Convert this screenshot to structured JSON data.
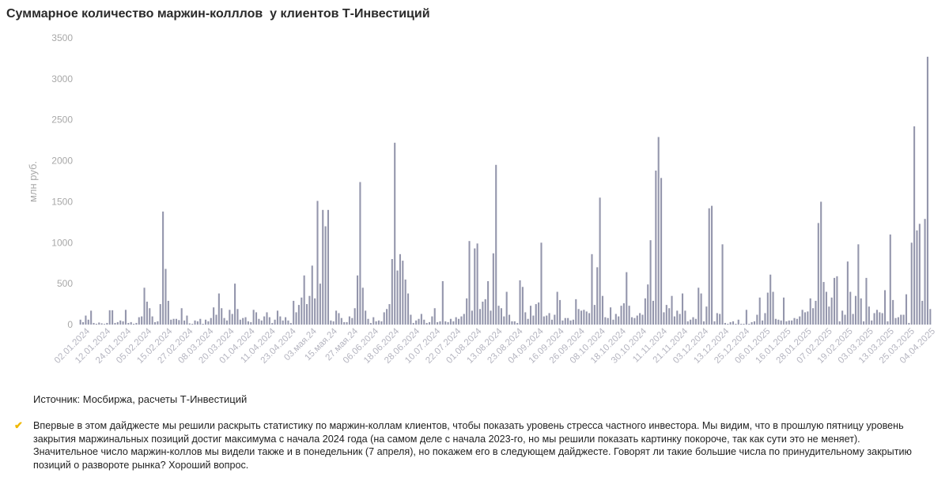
{
  "chart_data": {
    "type": "bar",
    "title": "Суммарное количество маржин-колллов  у клиентов Т-Инвестиций",
    "ylabel": "млн руб.",
    "xlabel": "",
    "ylim": [
      0,
      3500
    ],
    "yticks": [
      0,
      500,
      1000,
      1500,
      2000,
      2500,
      3000,
      3500
    ],
    "grid": false,
    "bar_color": "#9496ac",
    "x_tick_labels": [
      "02.01.2024",
      "12.01.2024",
      "24.01.2024",
      "05.02.2024",
      "15.02.2024",
      "27.02.2024",
      "08.03.2024",
      "20.03.2024",
      "01.04.2024",
      "11.04.2024",
      "23.04.2024",
      "03.мая.24",
      "15.мая.24",
      "27.мая.24",
      "06.06.2024",
      "18.06.2024",
      "28.06.2024",
      "10.07.2024",
      "22.07.2024",
      "01.08.2024",
      "13.08.2024",
      "23.08.2024",
      "04.09.2024",
      "16.09.2024",
      "26.09.2024",
      "08.10.2024",
      "18.10.2024",
      "30.10.2024",
      "11.11.2024",
      "21.11.2024",
      "03.12.2024",
      "13.12.2024",
      "25.12.2024",
      "06.01.2025",
      "16.01.2025",
      "28.01.2025",
      "07.02.2025",
      "19.02.2025",
      "03.03.2025",
      "13.03.2025",
      "25.03.2025",
      "04.04.2025"
    ],
    "values": [
      60,
      30,
      110,
      60,
      170,
      20,
      10,
      25,
      15,
      8,
      20,
      175,
      175,
      20,
      30,
      50,
      40,
      180,
      20,
      30,
      10,
      20,
      90,
      100,
      450,
      280,
      200,
      100,
      30,
      40,
      250,
      1380,
      680,
      290,
      60,
      70,
      70,
      55,
      200,
      50,
      110,
      15,
      10,
      50,
      40,
      70,
      10,
      60,
      40,
      80,
      210,
      120,
      380,
      200,
      80,
      50,
      180,
      130,
      500,
      190,
      60,
      80,
      90,
      40,
      30,
      180,
      150,
      70,
      50,
      100,
      150,
      90,
      20,
      60,
      170,
      100,
      50,
      90,
      50,
      20,
      290,
      150,
      240,
      330,
      600,
      250,
      350,
      720,
      320,
      1510,
      500,
      1400,
      1200,
      1400,
      50,
      40,
      170,
      140,
      80,
      30,
      30,
      100,
      80,
      200,
      600,
      1740,
      450,
      170,
      70,
      20,
      90,
      40,
      50,
      40,
      150,
      190,
      250,
      800,
      2220,
      660,
      860,
      780,
      550,
      380,
      120,
      20,
      50,
      70,
      130,
      60,
      20,
      30,
      100,
      200,
      30,
      40,
      530,
      40,
      30,
      70,
      40,
      90,
      70,
      100,
      130,
      320,
      1020,
      170,
      930,
      990,
      190,
      280,
      310,
      530,
      170,
      870,
      1950,
      230,
      200,
      100,
      400,
      120,
      40,
      40,
      20,
      540,
      460,
      150,
      70,
      230,
      110,
      250,
      270,
      1000,
      100,
      110,
      140,
      60,
      120,
      400,
      300,
      50,
      80,
      80,
      50,
      60,
      310,
      190,
      170,
      180,
      160,
      140,
      860,
      240,
      700,
      1550,
      350,
      90,
      80,
      210,
      60,
      130,
      100,
      230,
      260,
      640,
      230,
      90,
      80,
      110,
      140,
      120,
      320,
      490,
      1030,
      290,
      1880,
      2290,
      1790,
      150,
      240,
      200,
      350,
      100,
      170,
      130,
      380,
      170,
      40,
      60,
      90,
      70,
      450,
      380,
      40,
      220,
      1420,
      1450,
      40,
      140,
      130,
      980,
      20,
      10,
      30,
      40,
      10,
      60,
      10,
      10,
      180,
      10,
      30,
      40,
      120,
      330,
      50,
      140,
      390,
      610,
      400,
      70,
      60,
      50,
      330,
      40,
      50,
      50,
      80,
      70,
      100,
      180,
      150,
      160,
      320,
      200,
      290,
      1240,
      1500,
      520,
      400,
      220,
      330,
      570,
      590,
      40,
      170,
      120,
      770,
      400,
      130,
      350,
      980,
      320,
      40,
      570,
      220,
      50,
      140,
      180,
      150,
      140,
      420,
      40,
      1100,
      300,
      80,
      90,
      120,
      120,
      370,
      20,
      1000,
      2420,
      1150,
      1230,
      290,
      1290,
      3270,
      190
    ]
  },
  "source": "Источник: Мосбиржа, расчеты Т-Инвестиций",
  "note": "Впервые в этом дайджесте мы решили раскрыть статистику по маржин-коллам клиентов, чтобы показать уровень стресса частного инвестора. Мы видим, что в прошлую пятницу уровень закрытия маржинальных позиций достиг максимума с начала 2024 года (на самом деле с начала 2023-го, но мы решили показать картинку покороче, так как сути это не меняет). Значительное число маржин-коллов мы видели также и в понедельник (7 апреля), но покажем его в следующем дайджесте. Говорят ли такие большие числа по принудительному закрытию позиций о развороте рынка? Хороший вопрос.",
  "check_icon": "checkmark-icon"
}
